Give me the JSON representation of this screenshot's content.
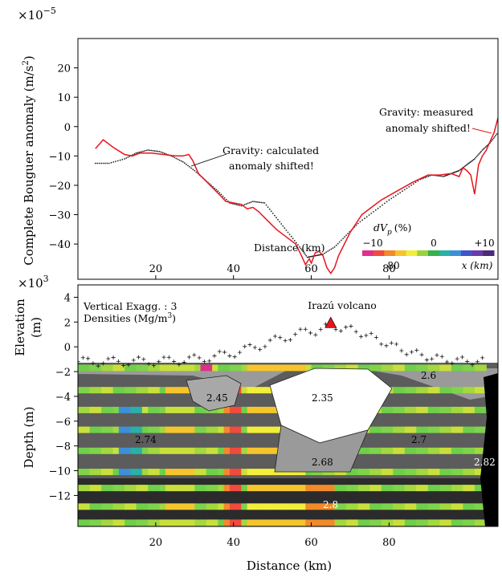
{
  "chart_data": [
    {
      "type": "line",
      "panel": "top",
      "multiplier": "×10",
      "multiplier_exp": "−5",
      "ylabel": "Complete Bouguer anomaly (m/s",
      "ylabel_sup": "2",
      "ylabel_end": ")",
      "xlabel_inner": "Distance (km)",
      "xlim": [
        0,
        108
      ],
      "ylim": [
        -52,
        30
      ],
      "xticks": [
        20,
        40,
        60,
        80
      ],
      "yticks": [
        20,
        10,
        0,
        -10,
        -20,
        -30,
        -40
      ],
      "annotations": {
        "calculated": [
          "Gravity: calculated",
          "anomaly shifted!"
        ],
        "measured": [
          "Gravity: measured",
          "anomaly shifted!"
        ]
      },
      "series": [
        {
          "name": "Gravity: measured anomaly shifted!",
          "color": "#e8141c",
          "x": [
            4.5,
            6.5,
            9,
            12,
            14,
            16,
            19,
            22,
            25,
            27,
            28.5,
            29.5,
            31,
            34,
            37,
            38,
            40,
            42,
            43.5,
            45,
            46.5,
            48,
            51,
            54,
            56,
            57.5,
            58.5,
            59.5,
            60,
            61,
            62,
            63,
            64,
            65,
            66,
            67,
            70,
            73,
            76,
            78,
            82,
            86,
            90,
            93,
            96,
            98,
            99,
            100,
            101,
            102,
            103,
            104,
            105,
            106,
            107,
            108
          ],
          "y": [
            -7.5,
            -4.5,
            -7,
            -9.5,
            -10,
            -9,
            -9,
            -9.5,
            -10,
            -10,
            -9.5,
            -11.5,
            -16,
            -20,
            -24,
            -25.5,
            -26,
            -26.5,
            -28,
            -27.5,
            -29,
            -31,
            -35,
            -38,
            -40,
            -44,
            -47,
            -45,
            -46.5,
            -43,
            -42.5,
            -44,
            -48,
            -50,
            -48,
            -44,
            -36,
            -30,
            -27,
            -25,
            -22,
            -19,
            -16.5,
            -16.5,
            -16,
            -17,
            -14,
            -15,
            -16.5,
            -23,
            -13,
            -10,
            -8,
            -5,
            -2,
            3
          ]
        },
        {
          "name": "Gravity: calculated anomaly shifted!",
          "color": "#222222",
          "x": [
            4.5,
            8,
            12,
            15,
            18,
            21,
            24,
            27,
            30,
            33,
            36,
            39,
            42,
            45,
            48,
            51,
            54,
            57,
            59,
            61,
            63,
            66,
            69,
            72,
            76,
            80,
            84,
            88,
            91,
            94,
            96,
            98,
            100,
            102,
            104,
            106,
            108
          ],
          "y": [
            -12.5,
            -12.5,
            -11,
            -9,
            -8,
            -8.5,
            -10,
            -12,
            -15,
            -18.5,
            -22,
            -26,
            -27,
            -25.5,
            -26,
            -31,
            -36,
            -41,
            -44.5,
            -44,
            -43.5,
            -41,
            -37,
            -33,
            -29,
            -25,
            -21.5,
            -18,
            -16.5,
            -17,
            -16,
            -15,
            -13,
            -11,
            -8,
            -5.5,
            -2
          ]
        }
      ]
    },
    {
      "type": "heatmap",
      "panel": "bottom",
      "title": "Irazú volcano",
      "multiplier": "×10",
      "multiplier_exp": "3",
      "vertical_exaggeration": "Vertical Exagg. : 3",
      "densities_label": "Densities (Mg/m",
      "densities_sup": "3",
      "densities_end": ")",
      "ylabel_elev_1": "Elevation",
      "ylabel_elev_2": "(m)",
      "ylabel_depth": "Depth (m)",
      "xlabel": "Distance (km)",
      "xlim": [
        0,
        108
      ],
      "ylim": [
        -14.5,
        5
      ],
      "xticks": [
        20,
        40,
        60,
        80
      ],
      "yticks": [
        4,
        2,
        0,
        -2,
        -4,
        -6,
        -8,
        -10,
        -12
      ],
      "volcano_x": 65,
      "colorbar": {
        "label": "dV",
        "label_sub": "p",
        "unit": "(%)",
        "ticks": [
          "−10",
          "0",
          "+10"
        ],
        "axis_ticks": [
          "80",
          "x (km)"
        ],
        "colors": [
          "#e0308a",
          "#f14a3e",
          "#f28a2a",
          "#f5c52c",
          "#f2ee3a",
          "#9bd23a",
          "#36b04c",
          "#2ab0a8",
          "#3d8fd6",
          "#3f55c8",
          "#6a3aa8",
          "#4a2a7a"
        ]
      },
      "densities": [
        "2.6",
        "2.45",
        "2.35",
        "2.74",
        "2.7",
        "2.68",
        "2.82",
        "2.8"
      ]
    }
  ]
}
